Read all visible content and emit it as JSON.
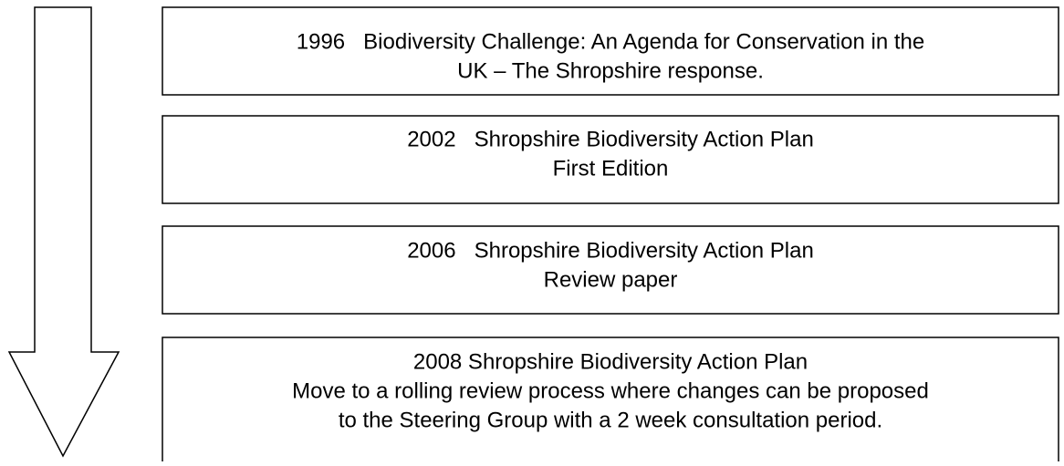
{
  "boxes": [
    {
      "lines": [
        "1996   Biodiversity Challenge: An Agenda for Conservation in the",
        "UK – The Shropshire response."
      ]
    },
    {
      "lines": [
        "2002   Shropshire Biodiversity Action Plan",
        "First Edition"
      ]
    },
    {
      "lines": [
        "2006   Shropshire Biodiversity Action Plan",
        "Review paper"
      ]
    },
    {
      "lines": [
        "2008 Shropshire Biodiversity Action Plan",
        "Move to a rolling review process where changes can be proposed",
        "to the Steering Group with a 2 week consultation period."
      ]
    }
  ]
}
